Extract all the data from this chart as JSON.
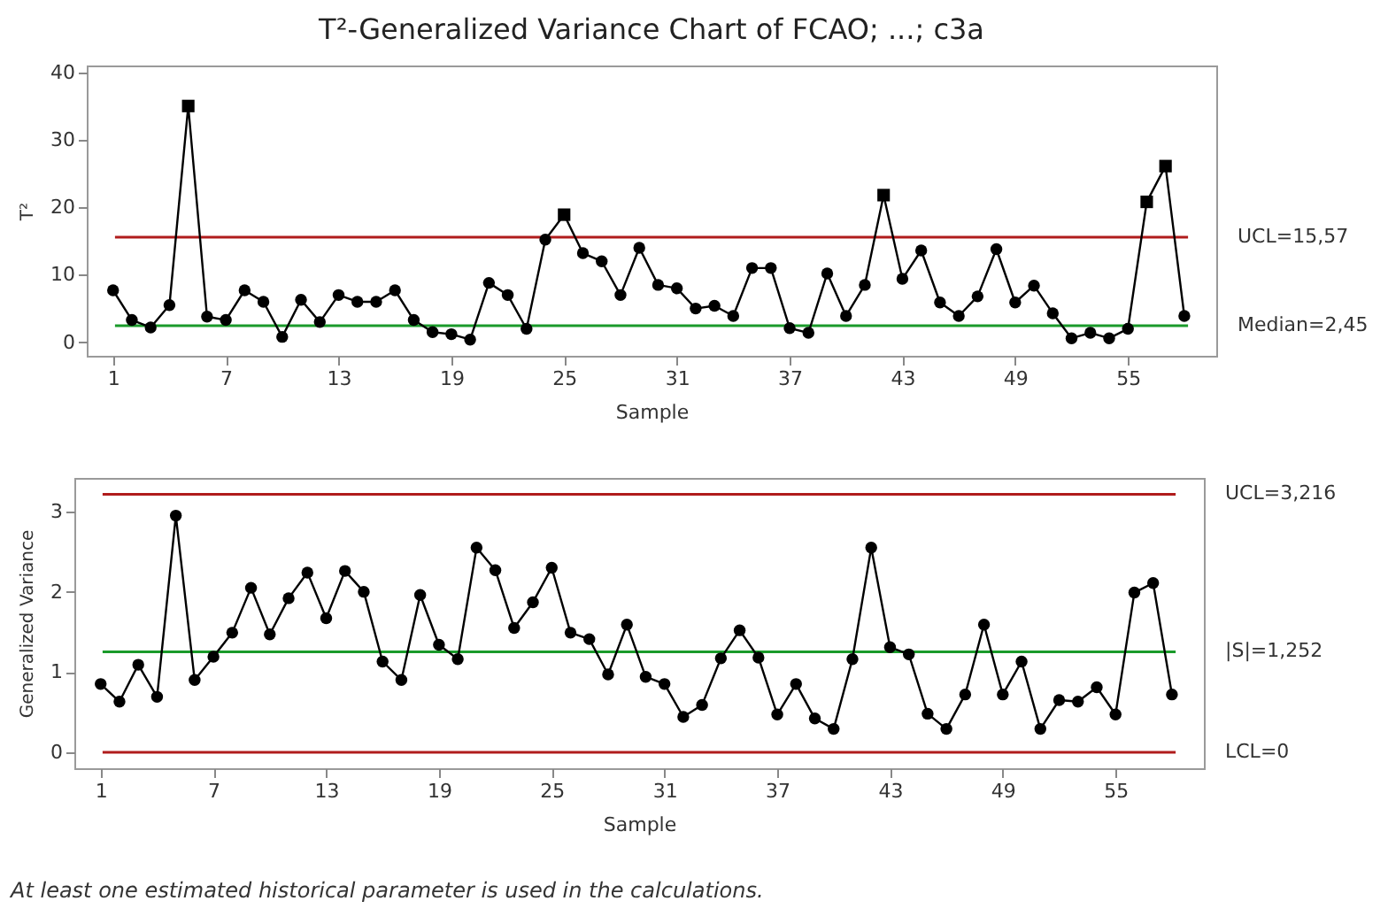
{
  "chart_data": [
    {
      "type": "line",
      "title": "T²-Generalized Variance Chart of FCAO; ...; c3a",
      "xlabel": "Sample",
      "ylabel": "T²",
      "x": [
        1,
        2,
        3,
        4,
        5,
        6,
        7,
        8,
        9,
        10,
        11,
        12,
        13,
        14,
        15,
        16,
        17,
        18,
        19,
        20,
        21,
        22,
        23,
        24,
        25,
        26,
        27,
        28,
        29,
        30,
        31,
        32,
        33,
        34,
        35,
        36,
        37,
        38,
        39,
        40,
        41,
        42,
        43,
        44,
        45,
        46,
        47,
        48,
        49,
        50,
        51,
        52,
        53,
        54,
        55,
        56,
        57,
        58
      ],
      "series": [
        {
          "type": "line",
          "marker": "none",
          "color": "#000000",
          "values": [
            7.7,
            3.3,
            2.2,
            5.5,
            35,
            3.8,
            3.3,
            7.7,
            6,
            0.8,
            6.3,
            3,
            7,
            6,
            6,
            7.7,
            3.3,
            1.5,
            1.2,
            0.4,
            8.8,
            7,
            2,
            15.2,
            18.9,
            13.2,
            12,
            7,
            14,
            8.5,
            8,
            5,
            5.4,
            3.9,
            11,
            11,
            2.1,
            1.4,
            10.2,
            3.9,
            8.5,
            21.8,
            9.4,
            13.6,
            5.9,
            3.9,
            6.8,
            13.8,
            5.9,
            8.4,
            4.3,
            0.6,
            1.4,
            0.6,
            2,
            20.8,
            26.1,
            3.9
          ]
        },
        {
          "type": "scatter",
          "marker": "circle",
          "color": "#000000",
          "values": [
            7.7,
            3.3,
            2.2,
            5.5,
            null,
            3.8,
            3.3,
            7.7,
            6,
            0.8,
            6.3,
            3,
            7,
            6,
            6,
            7.7,
            3.3,
            1.5,
            1.2,
            0.4,
            8.8,
            7,
            2,
            15.2,
            null,
            13.2,
            12,
            7,
            14,
            8.5,
            8,
            5,
            5.4,
            3.9,
            11,
            11,
            2.1,
            1.4,
            10.2,
            3.9,
            8.5,
            null,
            9.4,
            13.6,
            5.9,
            3.9,
            6.8,
            13.8,
            5.9,
            8.4,
            4.3,
            0.6,
            1.4,
            0.6,
            2,
            null,
            null,
            3.9
          ]
        },
        {
          "type": "scatter",
          "marker": "square",
          "color": "#000000",
          "values": [
            null,
            null,
            null,
            null,
            35,
            null,
            null,
            null,
            null,
            null,
            null,
            null,
            null,
            null,
            null,
            null,
            null,
            null,
            null,
            null,
            null,
            null,
            null,
            null,
            18.9,
            null,
            null,
            null,
            null,
            null,
            null,
            null,
            null,
            null,
            null,
            null,
            null,
            null,
            null,
            null,
            null,
            21.8,
            null,
            null,
            null,
            null,
            null,
            null,
            null,
            null,
            null,
            null,
            null,
            null,
            null,
            20.8,
            26.1,
            null
          ]
        }
      ],
      "xlim": [
        -0.4,
        59.7
      ],
      "xticks": [
        1,
        7,
        13,
        19,
        25,
        31,
        37,
        43,
        49,
        55
      ],
      "ylim": [
        -2,
        41
      ],
      "yticks": [
        0,
        10,
        20,
        30,
        40
      ],
      "ref_lines": [
        {
          "axis": "y",
          "value": 15.57,
          "label": "UCL=15,57",
          "color": "#b01c1c"
        },
        {
          "axis": "y",
          "value": 2.45,
          "label": "Median=2,45",
          "color": "#1a9a2a"
        }
      ],
      "grid": false
    },
    {
      "type": "line",
      "xlabel": "Sample",
      "ylabel": "Generalized Variance",
      "x": [
        1,
        2,
        3,
        4,
        5,
        6,
        7,
        8,
        9,
        10,
        11,
        12,
        13,
        14,
        15,
        16,
        17,
        18,
        19,
        20,
        21,
        22,
        23,
        24,
        25,
        26,
        27,
        28,
        29,
        30,
        31,
        32,
        33,
        34,
        35,
        36,
        37,
        38,
        39,
        40,
        41,
        42,
        43,
        44,
        45,
        46,
        47,
        48,
        49,
        50,
        51,
        52,
        53,
        54,
        55,
        56,
        57,
        58
      ],
      "series": [
        {
          "type": "line",
          "marker": "circle",
          "color": "#000000",
          "values": [
            0.85,
            0.63,
            1.09,
            0.69,
            2.95,
            0.9,
            1.19,
            1.49,
            2.05,
            1.47,
            1.92,
            2.24,
            1.67,
            2.26,
            2,
            1.13,
            0.9,
            1.96,
            1.34,
            1.16,
            2.55,
            2.27,
            1.55,
            1.87,
            2.3,
            1.49,
            1.41,
            0.97,
            1.59,
            0.94,
            0.85,
            0.44,
            0.59,
            1.17,
            1.52,
            1.18,
            0.47,
            0.85,
            0.42,
            0.29,
            1.16,
            2.55,
            1.31,
            1.22,
            0.48,
            0.29,
            0.72,
            1.59,
            0.72,
            1.13,
            0.29,
            0.65,
            0.63,
            0.81,
            0.47,
            1.99,
            2.11,
            0.72
          ]
        }
      ],
      "xlim": [
        -0.4,
        59.7
      ],
      "xticks": [
        1,
        7,
        13,
        19,
        25,
        31,
        37,
        43,
        49,
        55
      ],
      "ylim": [
        -0.2,
        3.42
      ],
      "yticks": [
        0,
        1,
        2,
        3
      ],
      "ref_lines": [
        {
          "axis": "y",
          "value": 3.216,
          "label": "UCL=3,216",
          "color": "#b01c1c"
        },
        {
          "axis": "y",
          "value": 1.252,
          "label": "|S|=1,252",
          "color": "#1a9a2a"
        },
        {
          "axis": "y",
          "value": 0,
          "label": "LCL=0",
          "color": "#b01c1c"
        }
      ],
      "annotations": [
        "At least one estimated historical parameter is used in the calculations."
      ],
      "grid": false
    }
  ]
}
